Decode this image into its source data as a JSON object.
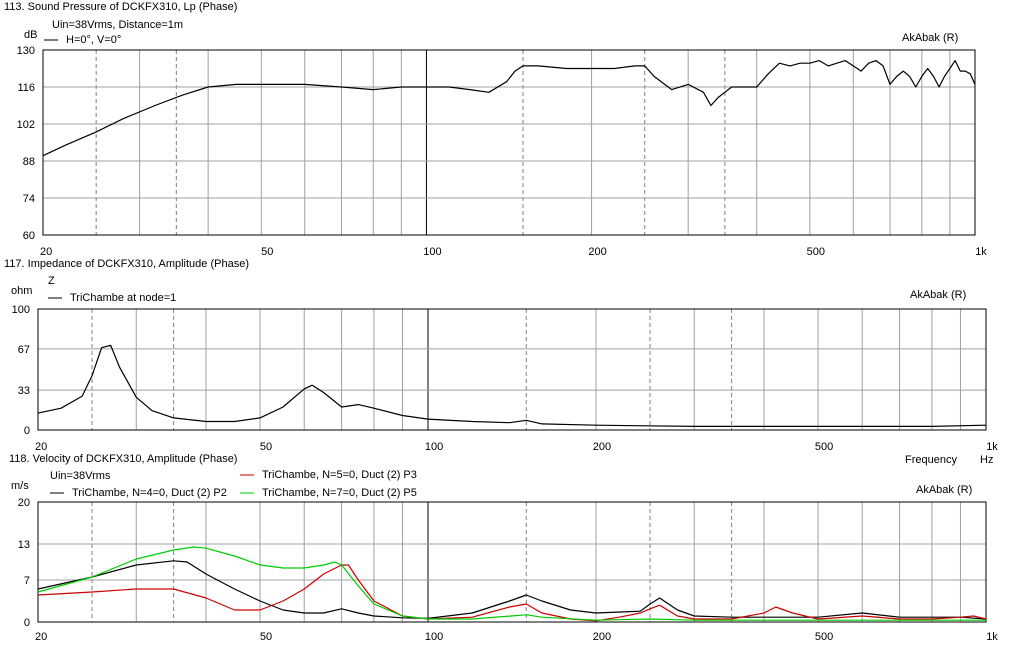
{
  "chart_data": [
    {
      "type": "line",
      "title": "113. Sound Pressure of DCKFX310, Lp (Phase)",
      "subtitle": "Uin=38Vrms, Distance=1m",
      "watermark": "AkAbak (R)",
      "ylabel": "dB",
      "xlabel": "",
      "xscale": "log",
      "xlim": [
        20,
        1000
      ],
      "ylim": [
        60,
        130
      ],
      "yticks": [
        "60",
        "74",
        "88",
        "102",
        "116",
        "130"
      ],
      "xticks": [
        {
          "v": 20,
          "label": "20"
        },
        {
          "v": 50,
          "label": "50"
        },
        {
          "v": 100,
          "label": "100"
        },
        {
          "v": 200,
          "label": "200"
        },
        {
          "v": 500,
          "label": "500"
        },
        {
          "v": 1000,
          "label": "1k"
        }
      ],
      "grid": true,
      "legend_position": "top-left",
      "series": [
        {
          "name": "H=0°, V=0°",
          "color": "#000000",
          "x": [
            20,
            22,
            25,
            28,
            32,
            36,
            40,
            45,
            50,
            55,
            60,
            70,
            80,
            90,
            100,
            110,
            120,
            130,
            140,
            145,
            150,
            160,
            180,
            200,
            220,
            240,
            250,
            260,
            280,
            300,
            320,
            330,
            340,
            360,
            380,
            400,
            420,
            440,
            460,
            480,
            500,
            520,
            540,
            560,
            580,
            600,
            620,
            640,
            660,
            680,
            700,
            720,
            740,
            760,
            780,
            800,
            820,
            840,
            860,
            880,
            900,
            920,
            940,
            960,
            980,
            1000
          ],
          "y": [
            90,
            94,
            99,
            104,
            109,
            113,
            116,
            117,
            117,
            117,
            117,
            116,
            115,
            116,
            116,
            116,
            115,
            114,
            118,
            122,
            124,
            124,
            123,
            123,
            123,
            124,
            124,
            120,
            115,
            117,
            114,
            109,
            112,
            116,
            116,
            116,
            121,
            125,
            124,
            125,
            125,
            126,
            124,
            125,
            126,
            124,
            122,
            125,
            126,
            124,
            117,
            120,
            122,
            120,
            116,
            120,
            123,
            120,
            116,
            120,
            123,
            126,
            122,
            122,
            121,
            117
          ]
        }
      ]
    },
    {
      "type": "line",
      "title": "117. Impedance of DCKFX310, Amplitude (Phase)",
      "subtitle": "Z",
      "watermark": "AkAbak (R)",
      "ylabel": "ohm",
      "xlabel": "",
      "xscale": "log",
      "xlim": [
        20,
        1000
      ],
      "ylim": [
        0,
        100
      ],
      "yticks": [
        "0",
        "33",
        "67",
        "100"
      ],
      "xticks": [
        {
          "v": 20,
          "label": "20"
        },
        {
          "v": 50,
          "label": "50"
        },
        {
          "v": 100,
          "label": "100"
        },
        {
          "v": 200,
          "label": "200"
        },
        {
          "v": 500,
          "label": "500"
        },
        {
          "v": 1000,
          "label": "1k"
        }
      ],
      "grid": true,
      "legend_position": "top-left",
      "series": [
        {
          "name": "TriChambe at node=1",
          "color": "#000000",
          "x": [
            20,
            22,
            24,
            25,
            26,
            27,
            28,
            30,
            32,
            35,
            40,
            45,
            50,
            55,
            60,
            62,
            65,
            70,
            75,
            80,
            90,
            100,
            120,
            140,
            150,
            160,
            200,
            300,
            500,
            800,
            1000
          ],
          "y": [
            14,
            18,
            28,
            45,
            68,
            70,
            52,
            27,
            16,
            10,
            7,
            7,
            10,
            19,
            34,
            37,
            31,
            19,
            21,
            18,
            12,
            9,
            7,
            6,
            8,
            5,
            4,
            3,
            3,
            3,
            4
          ]
        }
      ]
    },
    {
      "type": "line",
      "title": "118. Velocity of DCKFX310, Amplitude (Phase)",
      "subtitle": "Uin=38Vrms",
      "watermark": "AkAbak (R)",
      "ylabel": "m/s",
      "xlabel": "Frequency",
      "xunit": "Hz",
      "xscale": "log",
      "xlim": [
        20,
        1000
      ],
      "ylim": [
        0,
        20
      ],
      "yticks": [
        "0",
        "7",
        "13",
        "20"
      ],
      "xticks": [
        {
          "v": 20,
          "label": "20"
        },
        {
          "v": 50,
          "label": "50"
        },
        {
          "v": 100,
          "label": "100"
        },
        {
          "v": 200,
          "label": "200"
        },
        {
          "v": 500,
          "label": "500"
        },
        {
          "v": 1000,
          "label": "1k"
        }
      ],
      "grid": true,
      "legend_position": "top-left",
      "series": [
        {
          "name": "TriChambe, N=4=0, Duct (2) P2",
          "color": "#000000",
          "x": [
            20,
            25,
            30,
            35,
            37,
            40,
            45,
            50,
            55,
            60,
            65,
            70,
            75,
            80,
            90,
            100,
            120,
            140,
            150,
            160,
            180,
            200,
            240,
            250,
            260,
            280,
            300,
            350,
            400,
            500,
            600,
            700,
            800,
            900,
            1000
          ],
          "y": [
            5.5,
            7.5,
            9.5,
            10.2,
            10.0,
            8.0,
            5.5,
            3.5,
            2.0,
            1.5,
            1.5,
            2.2,
            1.5,
            1.0,
            0.7,
            0.6,
            1.5,
            3.5,
            4.5,
            3.5,
            2.0,
            1.5,
            1.8,
            3.0,
            4.0,
            2.0,
            1.0,
            0.8,
            0.8,
            0.8,
            1.5,
            0.8,
            0.8,
            0.8,
            0.5
          ]
        },
        {
          "name": "TriChambe, N=5=0, Duct (2) P3",
          "color": "#cc0000",
          "x": [
            20,
            25,
            30,
            35,
            40,
            45,
            50,
            55,
            60,
            65,
            70,
            72,
            75,
            80,
            90,
            100,
            120,
            140,
            150,
            160,
            180,
            200,
            220,
            240,
            250,
            260,
            280,
            300,
            350,
            400,
            420,
            450,
            500,
            600,
            700,
            800,
            900,
            950,
            1000
          ],
          "y": [
            4.5,
            5.0,
            5.5,
            5.5,
            4.0,
            2.0,
            2.0,
            3.5,
            5.5,
            8.0,
            9.5,
            9.5,
            7.0,
            3.5,
            1.0,
            0.5,
            0.8,
            2.5,
            3.0,
            1.5,
            0.5,
            0.2,
            0.8,
            1.5,
            2.2,
            2.8,
            1.0,
            0.5,
            0.5,
            1.5,
            2.5,
            1.5,
            0.5,
            1.0,
            0.5,
            0.5,
            0.8,
            1.0,
            0.5
          ]
        },
        {
          "name": "TriChambe, N=7=0, Duct (2) P5",
          "color": "#00cc00",
          "x": [
            20,
            25,
            30,
            35,
            38,
            40,
            45,
            50,
            55,
            60,
            65,
            68,
            70,
            75,
            80,
            90,
            100,
            120,
            150,
            160,
            200,
            250,
            300,
            400,
            500,
            600,
            800,
            1000
          ],
          "y": [
            5.0,
            7.5,
            10.5,
            12.0,
            12.5,
            12.3,
            11.0,
            9.5,
            9.0,
            9.0,
            9.5,
            10.0,
            9.5,
            6.0,
            3.0,
            1.0,
            0.5,
            0.5,
            1.2,
            0.8,
            0.3,
            0.5,
            0.3,
            0.3,
            0.3,
            0.3,
            0.3,
            0.3
          ]
        }
      ]
    }
  ]
}
